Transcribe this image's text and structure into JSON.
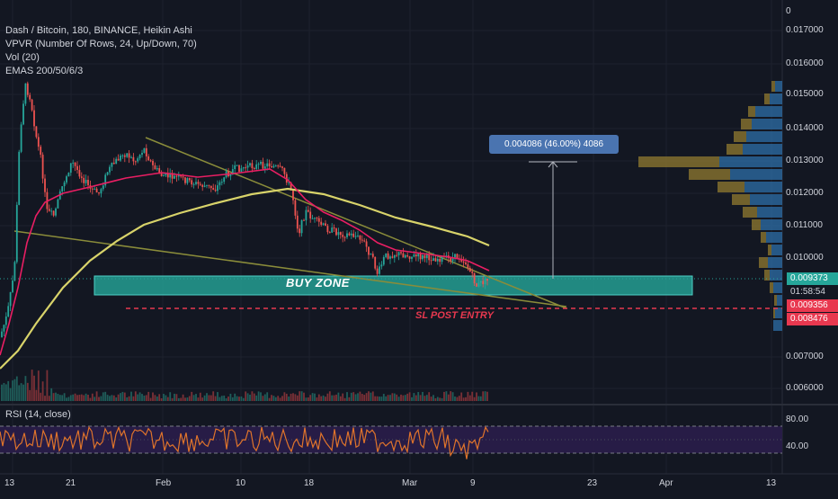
{
  "legend": {
    "symbol": "Dash / Bitcoin, 180, BINANCE, Heikin Ashi",
    "vpvr": "VPVR (Number Of Rows, 24, Up/Down, 70)",
    "vol": "Vol (20)",
    "emas": "EMAS 200/50/6/3"
  },
  "rsi_title": "RSI (14, close)",
  "price_axis": [
    "0",
    "0.017000",
    "0.016000",
    "0.015000",
    "0.014000",
    "0.013000",
    "0.012000",
    "0.011000",
    "0.010000",
    "0.007000",
    "0.006000"
  ],
  "rsi_axis": [
    "80.00",
    "40.00"
  ],
  "x_axis": [
    "13",
    "21",
    "Feb",
    "10",
    "18",
    "Mar",
    "9",
    "23",
    "Apr",
    "13"
  ],
  "price_tags": {
    "last": "0.009373",
    "countdown": "01:58:54",
    "sl": "0.009356",
    "low": "0.008476"
  },
  "measure_label": "0.004086 (46.00%) 4086",
  "annotations": {
    "buy_zone": "BUY ZONE",
    "sl": "SL POST ENTRY"
  },
  "colors": {
    "background": "#131722",
    "ema_fast": "#e91e63",
    "ema_slow": "#d8d36a",
    "buy_zone": "#26a69a",
    "sl_line": "#e8384f",
    "rsi_line": "#e0742b",
    "vp_up": "#2e6fa8",
    "vp_down": "#8a7430",
    "measure": "#4a74b0"
  }
}
